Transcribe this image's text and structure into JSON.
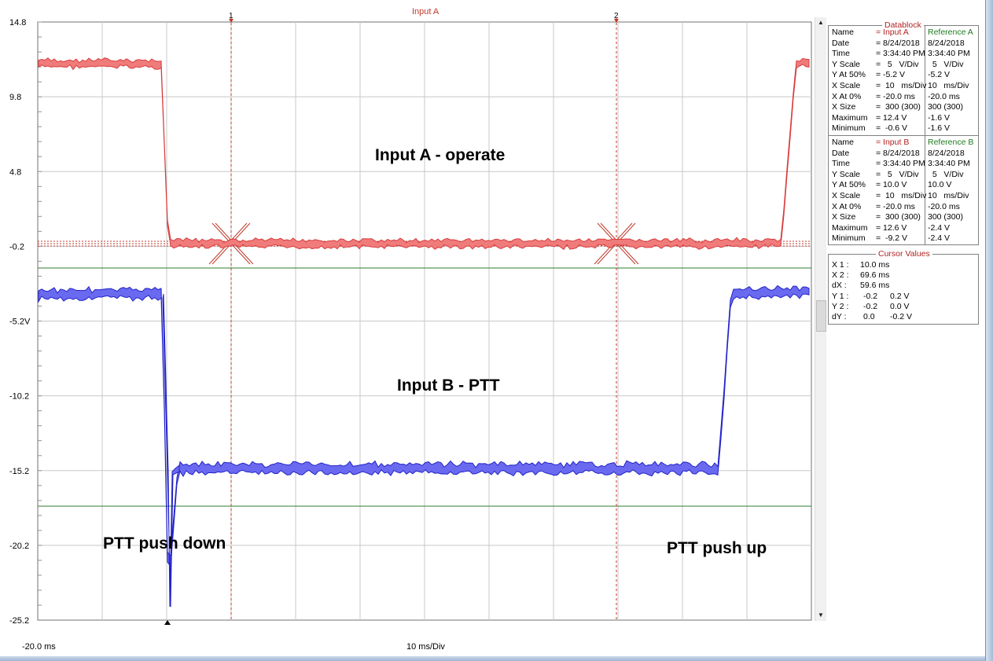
{
  "plot": {
    "title": "Input A",
    "x_origin_label": "-20.0 ms",
    "x_scale_label": "10 ms/Div",
    "y_ticks": [
      "14.8",
      "9.8",
      "4.8",
      "-0.2",
      "-5.2V",
      "-10.2",
      "-15.2",
      "-20.2",
      "-25.2"
    ],
    "cursor_labels": [
      "1",
      "2"
    ]
  },
  "overlays": {
    "input_a_label": "Input A - operate",
    "input_b_label": "Input B - PTT",
    "ptt_down_label": "PTT push down",
    "ptt_up_label": "PTT push up"
  },
  "datablock": {
    "title": "Datablock",
    "section_a": {
      "rows": [
        {
          "label": "Name",
          "value": "= Input A",
          "ref": "Reference A"
        },
        {
          "label": "Date",
          "value": "= 8/24/2018",
          "ref": "8/24/2018"
        },
        {
          "label": "Time",
          "value": "= 3:34:40 PM",
          "ref": "3:34:40 PM"
        },
        {
          "label": "Y Scale",
          "value": "=   5   V/Div",
          "ref": "  5   V/Div"
        },
        {
          "label": "Y At 50%",
          "value": "= -5.2 V",
          "ref": "-5.2 V"
        },
        {
          "label": "X Scale",
          "value": "=  10   ms/Div",
          "ref": "10   ms/Div"
        },
        {
          "label": "X At 0%",
          "value": "= -20.0 ms",
          "ref": "-20.0 ms"
        },
        {
          "label": "X Size",
          "value": "=  300 (300)",
          "ref": "300 (300)"
        },
        {
          "label": "Maximum",
          "value": "= 12.4 V",
          "ref": "-1.6 V"
        },
        {
          "label": "Minimum",
          "value": "=  -0.6 V",
          "ref": "-1.6 V"
        }
      ]
    },
    "section_b": {
      "rows": [
        {
          "label": "Name",
          "value": "= Input B",
          "ref": "Reference B"
        },
        {
          "label": "Date",
          "value": "= 8/24/2018",
          "ref": "8/24/2018"
        },
        {
          "label": "Time",
          "value": "= 3:34:40 PM",
          "ref": "3:34:40 PM"
        },
        {
          "label": "Y Scale",
          "value": "=   5   V/Div",
          "ref": "  5   V/Div"
        },
        {
          "label": "Y At 50%",
          "value": "= 10.0 V",
          "ref": "10.0 V"
        },
        {
          "label": "X Scale",
          "value": "=  10   ms/Div",
          "ref": "10   ms/Div"
        },
        {
          "label": "X At 0%",
          "value": "= -20.0 ms",
          "ref": "-20.0 ms"
        },
        {
          "label": "X Size",
          "value": "=  300 (300)",
          "ref": "300 (300)"
        },
        {
          "label": "Maximum",
          "value": "= 12.6 V",
          "ref": "-2.4 V"
        },
        {
          "label": "Minimum",
          "value": "=  -9.2 V",
          "ref": "-2.4 V"
        }
      ]
    }
  },
  "cursor_values": {
    "title": "Cursor Values",
    "x1": {
      "label": "X 1 :",
      "value": "10.0 ms"
    },
    "x2": {
      "label": "X 2 :",
      "value": "69.6 ms"
    },
    "dx": {
      "label": "dX :",
      "value": "59.6 ms"
    },
    "y1": {
      "label": "Y 1 :",
      "a": "-0.2",
      "b": "0.2 V"
    },
    "y2": {
      "label": "Y 2 :",
      "a": "-0.2",
      "b": "0.0 V"
    },
    "dy": {
      "label": "dY :",
      "a": "0.0",
      "b": "-0.2 V"
    }
  },
  "colors": {
    "trace_a": "#f07b7b",
    "trace_a_edge": "#d83c3c",
    "trace_b": "#6a6af0",
    "trace_b_edge": "#2222c8",
    "cursor": "#c0392b",
    "reference": "#2e7d32",
    "grid": "#c8c8c8"
  }
}
